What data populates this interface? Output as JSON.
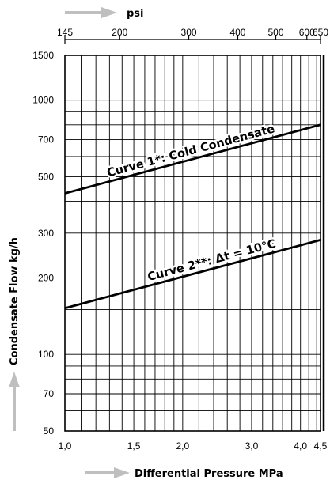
{
  "chart_data": {
    "type": "line",
    "x_scale": "log",
    "y_scale": "log",
    "xlim": [
      1.0,
      4.5
    ],
    "ylim": [
      50,
      1500
    ],
    "top_xlim": [
      145,
      650
    ],
    "xlabel": "Differential Pressure MPa",
    "ylabel": "Condensate Flow kg/h",
    "top_xlabel": "psi",
    "x_ticks": [
      {
        "value": 1.0,
        "label": "1,0"
      },
      {
        "value": 1.5,
        "label": "1,5"
      },
      {
        "value": 2.0,
        "label": "2,0"
      },
      {
        "value": 3.0,
        "label": "3,0"
      },
      {
        "value": 4.0,
        "label": "4,0"
      },
      {
        "value": 4.5,
        "label": "4,5"
      }
    ],
    "top_ticks": [
      {
        "value": 145,
        "label": "145"
      },
      {
        "value": 200,
        "label": "200"
      },
      {
        "value": 300,
        "label": "300"
      },
      {
        "value": 400,
        "label": "400"
      },
      {
        "value": 500,
        "label": "500"
      },
      {
        "value": 600,
        "label": "600"
      },
      {
        "value": 650,
        "label": "650"
      }
    ],
    "y_ticks": [
      {
        "value": 50,
        "label": "50"
      },
      {
        "value": 70,
        "label": "70"
      },
      {
        "value": 100,
        "label": "100"
      },
      {
        "value": 200,
        "label": "200"
      },
      {
        "value": 300,
        "label": "300"
      },
      {
        "value": 500,
        "label": "500"
      },
      {
        "value": 700,
        "label": "700"
      },
      {
        "value": 1000,
        "label": "1000"
      },
      {
        "value": 1500,
        "label": "1500"
      }
    ],
    "x_grid": [
      1.1,
      1.2,
      1.3,
      1.4,
      1.5,
      1.6,
      1.7,
      1.8,
      1.9,
      2.0,
      2.2,
      2.4,
      2.6,
      2.8,
      3.0,
      3.2,
      3.4,
      3.6,
      3.8,
      4.0,
      4.2,
      4.4
    ],
    "y_grid": [
      60,
      70,
      80,
      90,
      100,
      150,
      200,
      300,
      400,
      500,
      600,
      700,
      800,
      900,
      1000
    ],
    "series": [
      {
        "name": "Curve 1*: Cold Condensate",
        "x": [
          1.0,
          4.5
        ],
        "y": [
          430,
          800
        ]
      },
      {
        "name": "Curve 2**: Δt = 10°C",
        "x": [
          1.0,
          4.5
        ],
        "y": [
          152,
          282
        ]
      }
    ],
    "grid": true
  },
  "colors": {
    "line": "#000000",
    "arrow": "#bfbfbf",
    "background": "#ffffff"
  }
}
